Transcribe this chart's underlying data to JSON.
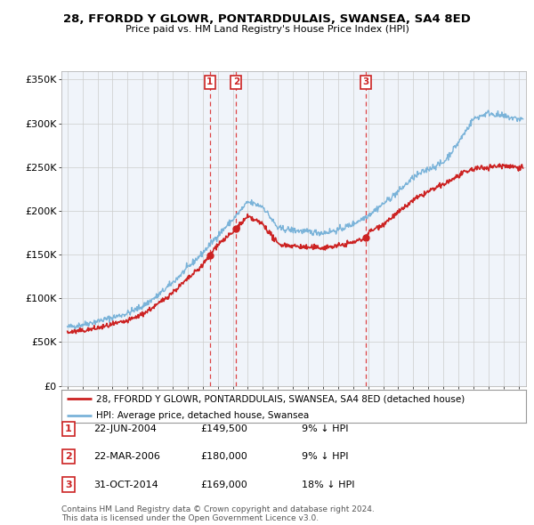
{
  "title": "28, FFORDD Y GLOWR, PONTARDDULAIS, SWANSEA, SA4 8ED",
  "subtitle": "Price paid vs. HM Land Registry's House Price Index (HPI)",
  "ylim": [
    0,
    360000
  ],
  "yticks": [
    0,
    50000,
    100000,
    150000,
    200000,
    250000,
    300000,
    350000
  ],
  "ytick_labels": [
    "£0",
    "£50K",
    "£100K",
    "£150K",
    "£200K",
    "£250K",
    "£300K",
    "£350K"
  ],
  "sales": [
    {
      "date_num": 2004.47,
      "price": 149500,
      "label": "1"
    },
    {
      "date_num": 2006.22,
      "price": 180000,
      "label": "2"
    },
    {
      "date_num": 2014.83,
      "price": 169000,
      "label": "3"
    }
  ],
  "sale_dot_marker": "o",
  "transaction_table": [
    {
      "num": "1",
      "date": "22-JUN-2004",
      "price": "£149,500",
      "hpi": "9% ↓ HPI"
    },
    {
      "num": "2",
      "date": "22-MAR-2006",
      "price": "£180,000",
      "hpi": "9% ↓ HPI"
    },
    {
      "num": "3",
      "date": "31-OCT-2014",
      "price": "£169,000",
      "hpi": "18% ↓ HPI"
    }
  ],
  "legend_line1": "28, FFORDD Y GLOWR, PONTARDDULAIS, SWANSEA, SA4 8ED (detached house)",
  "legend_line2": "HPI: Average price, detached house, Swansea",
  "footer1": "Contains HM Land Registry data © Crown copyright and database right 2024.",
  "footer2": "This data is licensed under the Open Government Licence v3.0.",
  "hpi_color": "#7ab3d9",
  "price_color": "#cc2222",
  "vline_color": "#dd4444",
  "background_color": "#ffffff",
  "grid_color": "#cccccc",
  "plot_bg": "#f0f4fa"
}
